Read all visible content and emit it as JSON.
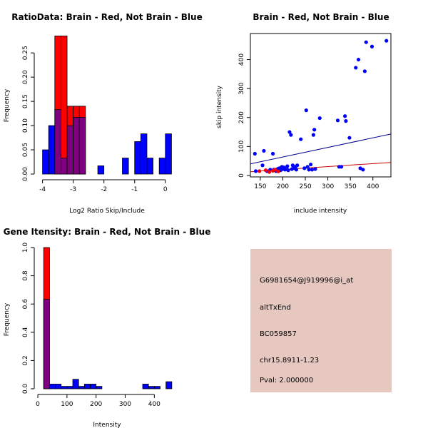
{
  "colors": {
    "red": "#ff0000",
    "blue": "#0000ff",
    "overlap": "#7f007f",
    "panel": "#e6c8c0",
    "pval": "#cc0000",
    "red_line": "#cc0000",
    "blue_line": "#00008b"
  },
  "chart_data": [
    {
      "type": "histogram",
      "title": "RatioData: Brain - Red, Not Brain - Blue",
      "xlabel": "Log2 Ratio Skip/Include",
      "ylabel": "Frequency",
      "xlim": [
        -4.2,
        0.4
      ],
      "ylim": [
        0,
        0.29
      ],
      "xticks": [
        -4,
        -3,
        -2,
        -1,
        0
      ],
      "yticks": [
        0.0,
        0.05,
        0.1,
        0.15,
        0.2,
        0.25
      ],
      "ytick_labels": [
        "0.00",
        "0.05",
        "0.10",
        "0.15",
        "0.20",
        "0.25"
      ],
      "series": [
        {
          "name": "Brain",
          "color": "red",
          "bars": [
            {
              "x0": -3.6,
              "x1": -3.4,
              "y": 0.285
            },
            {
              "x0": -3.4,
              "x1": -3.2,
              "y": 0.285
            },
            {
              "x0": -3.2,
              "x1": -3.0,
              "y": 0.14
            },
            {
              "x0": -3.0,
              "x1": -2.8,
              "y": 0.14
            },
            {
              "x0": -2.8,
              "x1": -2.6,
              "y": 0.14
            }
          ]
        },
        {
          "name": "Not Brain",
          "color": "blue",
          "bars": [
            {
              "x0": -4.0,
              "x1": -3.8,
              "y": 0.05
            },
            {
              "x0": -3.8,
              "x1": -3.6,
              "y": 0.1
            },
            {
              "x0": -3.6,
              "x1": -3.4,
              "y": 0.133
            },
            {
              "x0": -3.4,
              "x1": -3.2,
              "y": 0.033
            },
            {
              "x0": -3.2,
              "x1": -3.0,
              "y": 0.1
            },
            {
              "x0": -3.0,
              "x1": -2.8,
              "y": 0.117
            },
            {
              "x0": -2.8,
              "x1": -2.6,
              "y": 0.117
            },
            {
              "x0": -2.2,
              "x1": -2.0,
              "y": 0.017
            },
            {
              "x0": -1.4,
              "x1": -1.2,
              "y": 0.033
            },
            {
              "x0": -1.0,
              "x1": -0.8,
              "y": 0.067
            },
            {
              "x0": -0.8,
              "x1": -0.6,
              "y": 0.083
            },
            {
              "x0": -0.6,
              "x1": -0.4,
              "y": 0.033
            },
            {
              "x0": -0.2,
              "x1": 0.0,
              "y": 0.033
            },
            {
              "x0": 0.0,
              "x1": 0.2,
              "y": 0.083
            }
          ]
        }
      ]
    },
    {
      "type": "scatter",
      "title": "Brain - Red, Not Brain - Blue",
      "xlabel": "include intensity",
      "ylabel": "skip intensity",
      "xlim": [
        128,
        440
      ],
      "ylim": [
        -5,
        490
      ],
      "xticks": [
        150,
        200,
        250,
        300,
        350,
        400
      ],
      "yticks": [
        0,
        100,
        200,
        300,
        400
      ],
      "series": [
        {
          "name": "Not Brain",
          "color": "blue",
          "points": [
            [
              138,
              75
            ],
            [
              140,
              15
            ],
            [
              155,
              35
            ],
            [
              158,
              85
            ],
            [
              165,
              15
            ],
            [
              172,
              20
            ],
            [
              178,
              75
            ],
            [
              180,
              20
            ],
            [
              185,
              15
            ],
            [
              188,
              22
            ],
            [
              192,
              25
            ],
            [
              195,
              18
            ],
            [
              198,
              30
            ],
            [
              200,
              22
            ],
            [
              202,
              28
            ],
            [
              205,
              20
            ],
            [
              208,
              25
            ],
            [
              210,
              32
            ],
            [
              212,
              18
            ],
            [
              215,
              150
            ],
            [
              218,
              140
            ],
            [
              220,
              22
            ],
            [
              222,
              35
            ],
            [
              225,
              25
            ],
            [
              228,
              30
            ],
            [
              230,
              20
            ],
            [
              232,
              35
            ],
            [
              240,
              125
            ],
            [
              248,
              25
            ],
            [
              252,
              225
            ],
            [
              255,
              30
            ],
            [
              258,
              20
            ],
            [
              262,
              38
            ],
            [
              265,
              20
            ],
            [
              268,
              140
            ],
            [
              270,
              158
            ],
            [
              272,
              22
            ],
            [
              282,
              198
            ],
            [
              322,
              190
            ],
            [
              325,
              30
            ],
            [
              330,
              30
            ],
            [
              338,
              205
            ],
            [
              340,
              188
            ],
            [
              348,
              130
            ],
            [
              362,
              372
            ],
            [
              368,
              400
            ],
            [
              372,
              25
            ],
            [
              378,
              20
            ],
            [
              382,
              360
            ],
            [
              385,
              460
            ],
            [
              398,
              445
            ],
            [
              430,
              465
            ]
          ]
        },
        {
          "name": "Brain",
          "color": "red",
          "points": [
            [
              148,
              15
            ],
            [
              162,
              18
            ],
            [
              170,
              12
            ],
            [
              178,
              16
            ],
            [
              183,
              20
            ],
            [
              190,
              14
            ]
          ]
        }
      ],
      "regression_lines": [
        {
          "name": "Not Brain fit",
          "color": "blue_line",
          "x": [
            128,
            440
          ],
          "y": [
            40,
            143
          ]
        },
        {
          "name": "Brain fit",
          "color": "red_line",
          "x": [
            128,
            440
          ],
          "y": [
            13,
            45
          ]
        }
      ]
    },
    {
      "type": "histogram",
      "title": "Gene Itensity: Brain - Red, Not Brain - Blue",
      "xlabel": "Intensity",
      "ylabel": "Frequency",
      "xlim": [
        -5,
        480
      ],
      "ylim": [
        0,
        1.0
      ],
      "xticks": [
        0,
        100,
        200,
        300,
        400
      ],
      "yticks": [
        0.0,
        0.2,
        0.4,
        0.6,
        0.8,
        1.0
      ],
      "ytick_labels": [
        "0.0",
        "0.2",
        "0.4",
        "0.6",
        "0.8",
        "1.0"
      ],
      "series": [
        {
          "name": "Brain",
          "color": "red",
          "bars": [
            {
              "x0": 20,
              "x1": 40,
              "y": 1.0
            }
          ]
        },
        {
          "name": "Not Brain",
          "color": "blue",
          "bars": [
            {
              "x0": 20,
              "x1": 40,
              "y": 0.633
            },
            {
              "x0": 40,
              "x1": 60,
              "y": 0.033
            },
            {
              "x0": 60,
              "x1": 80,
              "y": 0.033
            },
            {
              "x0": 80,
              "x1": 100,
              "y": 0.017
            },
            {
              "x0": 100,
              "x1": 120,
              "y": 0.017
            },
            {
              "x0": 120,
              "x1": 140,
              "y": 0.067
            },
            {
              "x0": 140,
              "x1": 160,
              "y": 0.017
            },
            {
              "x0": 160,
              "x1": 180,
              "y": 0.033
            },
            {
              "x0": 180,
              "x1": 200,
              "y": 0.033
            },
            {
              "x0": 200,
              "x1": 220,
              "y": 0.017
            },
            {
              "x0": 360,
              "x1": 380,
              "y": 0.033
            },
            {
              "x0": 380,
              "x1": 400,
              "y": 0.017
            },
            {
              "x0": 400,
              "x1": 420,
              "y": 0.017
            },
            {
              "x0": 440,
              "x1": 460,
              "y": 0.05
            }
          ]
        }
      ]
    }
  ],
  "info_panel": {
    "probe_id": "G6981654@J919996@i_at",
    "event_type": "altTxEnd",
    "accession": "BC059857",
    "location": "chr15.8911-1.23",
    "pval": "Pval: 2.000000"
  }
}
